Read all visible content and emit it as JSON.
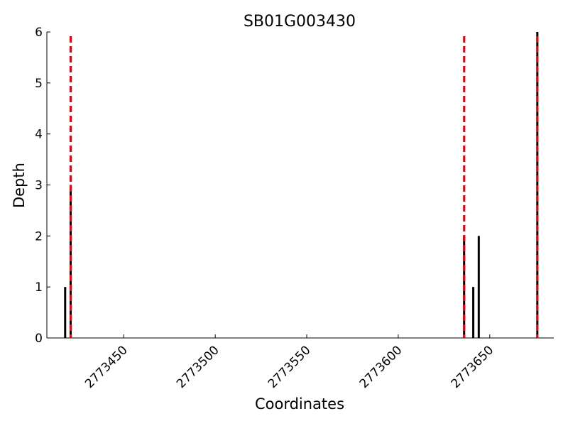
{
  "chart_data": {
    "type": "bar",
    "title": "SB01G003430",
    "x_label": "Coordinates",
    "y_label": "Depth",
    "x": [
      2773418,
      2773421,
      2773636,
      2773641,
      2773644,
      2773676
    ],
    "values": [
      1,
      3,
      2,
      1,
      2,
      6
    ],
    "color": "#000000",
    "vlines": [
      2773421,
      2773636,
      2773676
    ],
    "vline_color": "#e8000b",
    "xlim": [
      2773408,
      2773685
    ],
    "xticks": [
      2773450,
      2773500,
      2773550,
      2773600,
      2773650
    ],
    "ylim": [
      0,
      6
    ],
    "yticks": [
      0,
      1,
      2,
      3,
      4,
      5,
      6
    ]
  }
}
